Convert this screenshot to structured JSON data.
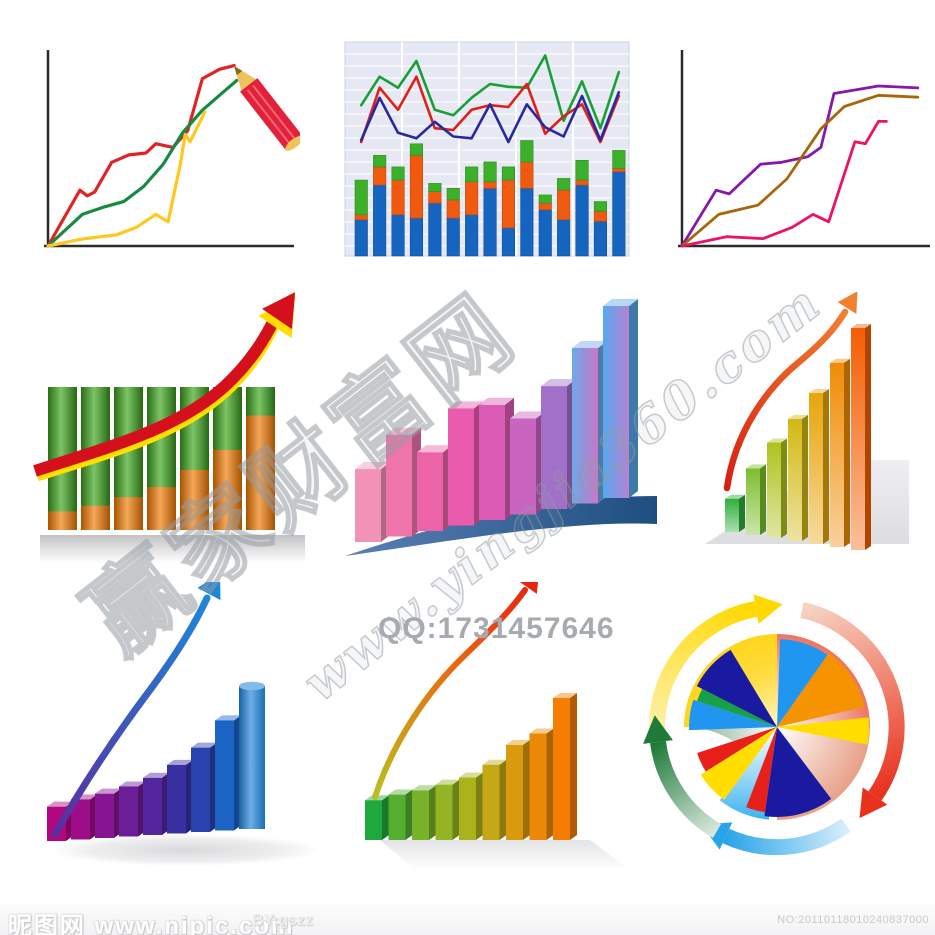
{
  "canvas": {
    "background": "#FFFFFF"
  },
  "watermark": {
    "brand": "赢家财富网",
    "url": "www.yingjia360.com",
    "qq": "QQ:1731457646",
    "color": "#9BA1A8"
  },
  "footer": {
    "site_name": "昵图网",
    "site_url": "www.nipic.com",
    "author": "BY:gszz",
    "serial": "NO:20110118010240837000"
  },
  "chart_data": [
    {
      "id": "pencil-line-chart",
      "type": "line",
      "panel": "top-left",
      "axis_color": "#2B2B2B",
      "series": [
        {
          "name": "red",
          "color": "#E02424",
          "points": [
            [
              0,
              0
            ],
            [
              13,
              30
            ],
            [
              16,
              27
            ],
            [
              19,
              29
            ],
            [
              26,
              45
            ],
            [
              33,
              49
            ],
            [
              40,
              50
            ],
            [
              44,
              55
            ],
            [
              51,
              53
            ],
            [
              57,
              62
            ],
            [
              63,
              90
            ],
            [
              70,
              95
            ],
            [
              76,
              97
            ]
          ]
        },
        {
          "name": "green",
          "color": "#168A40",
          "points": [
            [
              0,
              0
            ],
            [
              14,
              17
            ],
            [
              23,
              21
            ],
            [
              31,
              24
            ],
            [
              39,
              32
            ],
            [
              47,
              44
            ],
            [
              55,
              61
            ],
            [
              63,
              73
            ],
            [
              70,
              81
            ],
            [
              77,
              89
            ]
          ]
        },
        {
          "name": "yellow",
          "color": "#FFC81E",
          "points": [
            [
              0,
              0
            ],
            [
              15,
              4
            ],
            [
              28,
              6
            ],
            [
              36,
              10
            ],
            [
              44,
              17
            ],
            [
              49,
              13
            ],
            [
              54,
              44
            ],
            [
              56,
              60
            ],
            [
              58,
              56
            ],
            [
              64,
              72
            ]
          ]
        }
      ],
      "decoration": "red-pencil",
      "pencil": {
        "body": "#E3213A",
        "wood": "#EEC35C",
        "tip": "#8A6A1E"
      }
    },
    {
      "id": "line-stacked-bar-combo",
      "type": "bar+line",
      "panel": "top-center",
      "bg": "#E6E8F3",
      "grid_color": "#FFFFFF",
      "border_color": "#CDD2E4",
      "bar_colors": [
        "#1565C0",
        "#F05A10",
        "#3CB02A"
      ],
      "bar_segment_names": [
        "blue",
        "orange",
        "green"
      ],
      "bars": [
        [
          22,
          3,
          21
        ],
        [
          43,
          11,
          7
        ],
        [
          25,
          21,
          8
        ],
        [
          23,
          38,
          7
        ],
        [
          32,
          7,
          5
        ],
        [
          23,
          11,
          7
        ],
        [
          25,
          20,
          9
        ],
        [
          41,
          4,
          12
        ],
        [
          17,
          29,
          8
        ],
        [
          41,
          16,
          13
        ],
        [
          28,
          4,
          5
        ],
        [
          22,
          18,
          7
        ],
        [
          43,
          3,
          12
        ],
        [
          21,
          6,
          6
        ],
        [
          51,
          2,
          11
        ]
      ],
      "line_series": [
        {
          "name": "green",
          "color": "#18A038",
          "values": [
            40,
            71,
            59,
            88,
            35,
            29,
            48,
            63,
            60,
            59,
            94,
            23,
            66,
            15,
            76
          ]
        },
        {
          "name": "red",
          "color": "#E02018",
          "values": [
            0,
            59,
            35,
            71,
            15,
            13,
            35,
            40,
            38,
            63,
            9,
            28,
            41,
            0,
            50
          ]
        },
        {
          "name": "navy",
          "color": "#2828A0",
          "values": [
            2,
            48,
            10,
            4,
            22,
            6,
            4,
            41,
            0,
            41,
            16,
            6,
            50,
            2,
            54
          ]
        }
      ]
    },
    {
      "id": "trend-lines",
      "type": "line",
      "panel": "top-right",
      "axis_color": "#2B2B2B",
      "series": [
        {
          "name": "purple",
          "color": "#8818A8",
          "points": [
            [
              0,
              0
            ],
            [
              13,
              30
            ],
            [
              18,
              28
            ],
            [
              30,
              44
            ],
            [
              38,
              45
            ],
            [
              48,
              48
            ],
            [
              53,
              53
            ],
            [
              58,
              82
            ],
            [
              75,
              86
            ],
            [
              90,
              85
            ]
          ]
        },
        {
          "name": "brown",
          "color": "#A8660A",
          "points": [
            [
              0,
              0
            ],
            [
              14,
              17
            ],
            [
              29,
              22
            ],
            [
              40,
              36
            ],
            [
              53,
              63
            ],
            [
              62,
              75
            ],
            [
              75,
              81
            ],
            [
              90,
              80
            ]
          ]
        },
        {
          "name": "pink",
          "color": "#EE1166",
          "points": [
            [
              0,
              0
            ],
            [
              17,
              5
            ],
            [
              31,
              4
            ],
            [
              42,
              10
            ],
            [
              50,
              17
            ],
            [
              56,
              13
            ],
            [
              66,
              56
            ],
            [
              70,
              55
            ],
            [
              75,
              67
            ],
            [
              78,
              67
            ]
          ]
        }
      ]
    },
    {
      "id": "green-orange-bars-growth-arrow",
      "type": "bar",
      "panel": "middle-left",
      "bar_count": 7,
      "bar_green": "#3FA81E",
      "bar_orange": "#F07800",
      "values_orange_fraction": [
        0.13,
        0.17,
        0.23,
        0.3,
        0.42,
        0.56,
        0.8
      ],
      "arrow_main": "#D4101C",
      "arrow_accent": "#FFDE00"
    },
    {
      "id": "pink-3d-bars-platform",
      "type": "bar",
      "panel": "middle-center",
      "values": [
        0.38,
        0.53,
        0.41,
        0.61,
        0.6,
        0.5,
        0.64,
        0.81,
        1.0
      ],
      "colors": [
        "#F293B5",
        "#EF74AC",
        "#ED63A8",
        "#E95BAC",
        "#DC5BB4",
        "#C964C0",
        "#A26FC9",
        [
          "#6FA8E8",
          "#C877C8"
        ],
        [
          "#55AAEE",
          "#B782D2"
        ]
      ],
      "platform_colors": [
        "#5A80B4",
        "#1E4E80"
      ]
    },
    {
      "id": "glassy-green-orange-bars-arrow",
      "type": "bar",
      "panel": "middle-right",
      "values": [
        0.15,
        0.3,
        0.43,
        0.55,
        0.68,
        0.83,
        1.0
      ],
      "colors": [
        "#2FAE3C",
        "#7CBE2E",
        "#AFC21E",
        "#D2B813",
        "#E8A40C",
        "#F08C06",
        "#F45E02"
      ],
      "arrow_from": "#D81E10",
      "arrow_to": "#F08030",
      "platform_colors": [
        "#EFEFF1",
        "#DDDDE1"
      ]
    },
    {
      "id": "purple-blue-3d-bars-arrow",
      "type": "bar",
      "panel": "bottom-left",
      "values": [
        0.24,
        0.28,
        0.31,
        0.35,
        0.4,
        0.48,
        0.59,
        0.77,
        1.0
      ],
      "colors": [
        "#B0077F",
        "#9D0D88",
        "#851591",
        "#6C1D98",
        "#53269E",
        "#3930A4",
        "#2942AE",
        "#1C63C6",
        "#1F82D8"
      ],
      "arrow_from": "#5A2D9E",
      "arrow_to": "#1E88D8",
      "last_bar_shape": "cylinder"
    },
    {
      "id": "green-yellow-orange-3d-bars-arrow",
      "type": "bar",
      "panel": "bottom-center",
      "values": [
        0.28,
        0.32,
        0.35,
        0.39,
        0.44,
        0.53,
        0.67,
        0.75,
        1.0
      ],
      "colors": [
        "#1FA83C",
        "#55AE30",
        "#78B22A",
        "#94B423",
        "#ACB21C",
        "#C4A816",
        "#DA9A0E",
        "#EC8A07",
        "#F67D03"
      ],
      "arrow_from": "#B8C020",
      "arrow_mid": "#E87010",
      "arrow_to": "#E62810"
    },
    {
      "id": "pie-cycle-diagram",
      "type": "pie",
      "panel": "bottom-right",
      "quadrant_colors": {
        "top_left": "#FFD000",
        "top_right": "#E63418",
        "bottom_right": "#DE7A56",
        "bottom_left": "#1E6B30",
        "bottom_center": "#3FB4F0"
      },
      "slices": [
        {
          "from": 2,
          "to": 35,
          "r": 88,
          "color": "#2196F0"
        },
        {
          "from": 35,
          "to": 77,
          "r": 90,
          "color": "#F59300"
        },
        {
          "from": 84,
          "to": 101,
          "r": 92,
          "color": "#FFDE00"
        },
        {
          "from": 143,
          "to": 188,
          "r": 90,
          "color": "#1A1AA0"
        },
        {
          "from": 188,
          "to": 201,
          "r": 86,
          "color": "#E8201C"
        },
        {
          "from": 216,
          "to": 238,
          "r": 90,
          "color": "#FFDE00"
        },
        {
          "from": 238,
          "to": 252,
          "r": 84,
          "color": "#E8201C"
        },
        {
          "from": 268,
          "to": 288,
          "r": 88,
          "color": "#2196F0"
        },
        {
          "from": 288,
          "to": 297,
          "r": 84,
          "color": "#18A048"
        },
        {
          "from": 297,
          "to": 329,
          "r": 90,
          "color": "#1A1AA0"
        }
      ],
      "cycle_arrows": [
        {
          "position": "top",
          "direction": "clockwise",
          "pale": "#FFF3BE",
          "color": "#FFD800"
        },
        {
          "position": "right",
          "direction": "clockwise",
          "pale": "#F7D2C0",
          "color": "#E8321E"
        },
        {
          "position": "bottom",
          "direction": "clockwise",
          "pale": "#D6EEFB",
          "color": "#2AA4E8"
        },
        {
          "position": "left",
          "direction": "clockwise",
          "pale": "#D9E8DD",
          "color": "#1E7A38"
        }
      ]
    }
  ]
}
